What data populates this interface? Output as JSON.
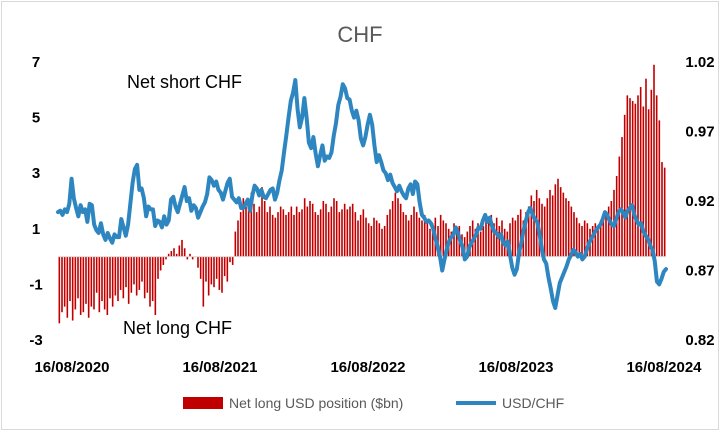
{
  "chart_data": {
    "type": "bar+line",
    "title": "CHF",
    "x_tick_labels": [
      "16/08/2020",
      "16/08/2021",
      "16/08/2022",
      "16/08/2023",
      "16/08/2024"
    ],
    "y_left": {
      "ticks": [
        7,
        5,
        3,
        1,
        -1,
        -3
      ],
      "range": [
        -3,
        7
      ]
    },
    "y_right": {
      "ticks": [
        "1.02",
        "0.97",
        "0.92",
        "0.87",
        "0.82"
      ],
      "range": [
        0.82,
        1.02
      ]
    },
    "annotations": [
      "Net short CHF",
      "Net long CHF"
    ],
    "series": [
      {
        "name": "Net long USD position ($bn)",
        "type": "bar",
        "axis": "left",
        "color": "#c00000",
        "values": [
          -2.4,
          -2.0,
          -1.8,
          -2.2,
          -1.6,
          -2.3,
          -1.9,
          -1.5,
          -2.1,
          -2.0,
          -1.7,
          -2.2,
          -1.8,
          -1.9,
          -1.3,
          -2.0,
          -1.6,
          -1.9,
          -2.1,
          -1.5,
          -1.8,
          -1.4,
          -1.6,
          -1.2,
          -1.5,
          -1.1,
          -1.7,
          -1.3,
          -1.0,
          -1.4,
          -1.2,
          -0.9,
          -1.5,
          -1.3,
          -1.8,
          -1.6,
          -2.1,
          -0.8,
          -0.5,
          -0.3,
          -0.1,
          0.1,
          0.2,
          0.3,
          0.1,
          0.4,
          0.6,
          0.3,
          -0.1,
          0.1,
          -0.1,
          0.0,
          -0.4,
          -0.8,
          -1.8,
          -0.9,
          -1.4,
          -1.0,
          -1.1,
          -0.8,
          -1.2,
          -1.3,
          -0.7,
          -0.9,
          -0.2,
          -0.3,
          0.9,
          1.3,
          1.6,
          2.1,
          1.8,
          2.0,
          2.3,
          1.9,
          1.6,
          1.8,
          2.5,
          2.0,
          1.6,
          1.8,
          1.5,
          1.4,
          1.6,
          1.8,
          1.7,
          1.5,
          1.6,
          1.8,
          1.5,
          1.8,
          1.6,
          1.7,
          2.1,
          1.8,
          2.0,
          1.9,
          1.6,
          1.5,
          1.7,
          2.0,
          1.9,
          1.6,
          1.8,
          2.1,
          2.0,
          1.6,
          1.7,
          1.9,
          1.7,
          1.8,
          1.9,
          1.6,
          1.3,
          1.5,
          1.7,
          1.4,
          1.2,
          1.1,
          1.4,
          1.3,
          1.2,
          1.0,
          1.1,
          1.5,
          1.7,
          2.0,
          2.3,
          2.1,
          1.9,
          1.6,
          1.5,
          1.3,
          1.5,
          1.8,
          1.6,
          1.4,
          1.3,
          1.5,
          1.2,
          1.0,
          1.2,
          1.4,
          1.1,
          1.5,
          1.3,
          1.2,
          1.0,
          0.9,
          1.2,
          1.0,
          1.1,
          0.8,
          0.7,
          0.9,
          1.1,
          1.3,
          1.0,
          1.2,
          0.9,
          1.1,
          1.3,
          1.2,
          1.5,
          1.2,
          1.4,
          1.1,
          1.3,
          1.0,
          0.9,
          1.2,
          1.4,
          1.3,
          1.5,
          1.7,
          1.3,
          1.6,
          1.8,
          2.2,
          2.0,
          2.4,
          2.1,
          1.9,
          1.8,
          2.1,
          2.4,
          2.2,
          2.6,
          2.8,
          2.5,
          2.3,
          2.1,
          2.0,
          1.8,
          1.6,
          1.4,
          1.2,
          1.1,
          1.3,
          1.2,
          1.0,
          1.1,
          1.2,
          1.0,
          1.3,
          1.4,
          1.6,
          1.8,
          2.0,
          2.4,
          2.9,
          3.6,
          4.3,
          5.1,
          5.8,
          5.7,
          5.6,
          5.5,
          5.8,
          6.1,
          5.4,
          6.4,
          5.3,
          6.0,
          6.9,
          5.8,
          4.9,
          3.4,
          3.2
        ]
      },
      {
        "name": "USD/CHF",
        "type": "line",
        "axis": "right",
        "color": "#2e86c1",
        "values": [
          0.912,
          0.913,
          0.91,
          0.914,
          0.912,
          0.918,
          0.936,
          0.922,
          0.915,
          0.909,
          0.917,
          0.912,
          0.914,
          0.905,
          0.918,
          0.917,
          0.903,
          0.899,
          0.897,
          0.904,
          0.896,
          0.892,
          0.897,
          0.893,
          0.89,
          0.896,
          0.894,
          0.894,
          0.907,
          0.901,
          0.895,
          0.903,
          0.918,
          0.933,
          0.943,
          0.946,
          0.928,
          0.929,
          0.922,
          0.909,
          0.916,
          0.914,
          0.914,
          0.902,
          0.906,
          0.905,
          0.901,
          0.909,
          0.903,
          0.906,
          0.921,
          0.923,
          0.916,
          0.912,
          0.918,
          0.924,
          0.93,
          0.92,
          0.922,
          0.913,
          0.917,
          0.915,
          0.908,
          0.912,
          0.916,
          0.919,
          0.925,
          0.937,
          0.935,
          0.931,
          0.934,
          0.928,
          0.926,
          0.921,
          0.927,
          0.933,
          0.936,
          0.923,
          0.921,
          0.919,
          0.922,
          0.915,
          0.915,
          0.918,
          0.921,
          0.913,
          0.924,
          0.931,
          0.929,
          0.924,
          0.928,
          0.923,
          0.922,
          0.925,
          0.928,
          0.929,
          0.921,
          0.926,
          0.935,
          0.942,
          0.955,
          0.967,
          0.98,
          0.992,
          0.998,
          1.007,
          0.986,
          0.973,
          0.98,
          0.994,
          0.98,
          0.962,
          0.958,
          0.966,
          0.954,
          0.945,
          0.953,
          0.96,
          0.949,
          0.952,
          0.951,
          0.955,
          0.967,
          0.976,
          0.989,
          0.995,
          1.004,
          1.001,
          0.994,
          0.993,
          0.985,
          0.98,
          0.985,
          0.978,
          0.965,
          0.96,
          0.966,
          0.975,
          0.982,
          0.975,
          0.96,
          0.948,
          0.953,
          0.948,
          0.942,
          0.94,
          0.935,
          0.939,
          0.933,
          0.93,
          0.927,
          0.931,
          0.927,
          0.924,
          0.922,
          0.929,
          0.932,
          0.925,
          0.934,
          0.932,
          0.919,
          0.91,
          0.908,
          0.905,
          0.906,
          0.904,
          0.9,
          0.893,
          0.887,
          0.88,
          0.87,
          0.878,
          0.885,
          0.891,
          0.894,
          0.896,
          0.901,
          0.897,
          0.891,
          0.887,
          0.878,
          0.88,
          0.887,
          0.89,
          0.893,
          0.896,
          0.901,
          0.9,
          0.906,
          0.91,
          0.905,
          0.908,
          0.902,
          0.898,
          0.897,
          0.894,
          0.896,
          0.89,
          0.888,
          0.891,
          0.881,
          0.872,
          0.867,
          0.871,
          0.883,
          0.89,
          0.899,
          0.906,
          0.912,
          0.915,
          0.91,
          0.907,
          0.905,
          0.897,
          0.886,
          0.878,
          0.875,
          0.865,
          0.857,
          0.848,
          0.843,
          0.852,
          0.861,
          0.865,
          0.869,
          0.873,
          0.878,
          0.881,
          0.885,
          0.883,
          0.88,
          0.882,
          0.878,
          0.88,
          0.885,
          0.89,
          0.893,
          0.896,
          0.899,
          0.901,
          0.903,
          0.907,
          0.912,
          0.91,
          0.906,
          0.903,
          0.902,
          0.907,
          0.912,
          0.914,
          0.912,
          0.908,
          0.913,
          0.915,
          0.917,
          0.91,
          0.906,
          0.903,
          0.904,
          0.898,
          0.895,
          0.893,
          0.888,
          0.885,
          0.877,
          0.862,
          0.86,
          0.864,
          0.869,
          0.871
        ]
      }
    ],
    "grid": false,
    "legend_position": "bottom"
  }
}
